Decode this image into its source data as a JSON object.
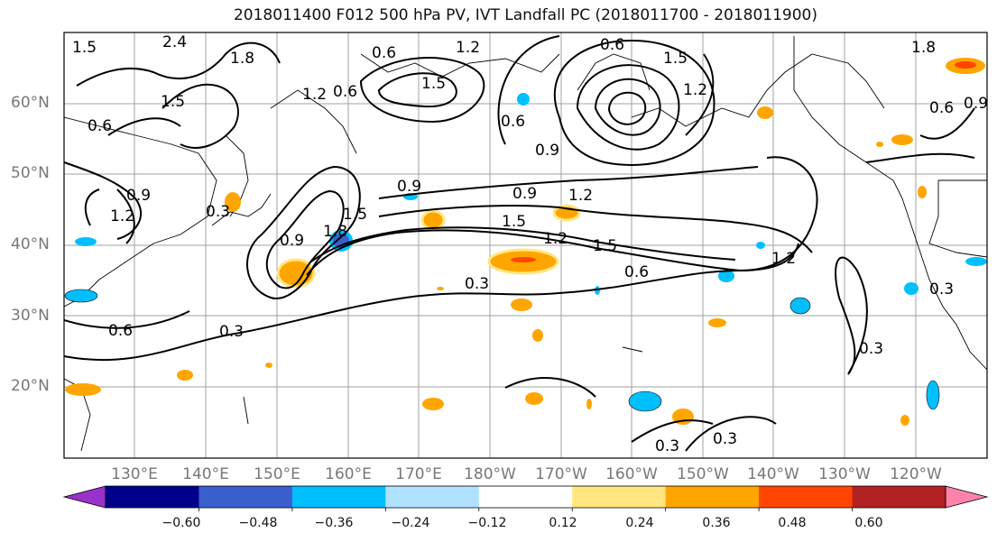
{
  "title": "2018011400 F012 500 hPa PV, IVT Landfall PC (2018011700 - 2018011900)",
  "lat_labels": [
    "60°N",
    "50°N",
    "40°N",
    "30°N",
    "20°N"
  ],
  "lon_labels": [
    "130°E",
    "140°E",
    "150°E",
    "160°E",
    "170°E",
    "180°W",
    "170°W",
    "160°W",
    "150°W",
    "140°W",
    "130°W",
    "120°W"
  ],
  "colorbar": {
    "tick_labels": [
      "−0.60",
      "−0.48",
      "−0.36",
      "−0.24",
      "−0.12",
      "0.12",
      "0.24",
      "0.36",
      "0.48",
      "0.60"
    ],
    "colors": [
      "#9932cc",
      "#00008b",
      "#3a5fcd",
      "#00bfff",
      "#b0e2ff",
      "#ffffff",
      "#ffe680",
      "#ffa500",
      "#ff4500",
      "#b22222",
      "#ff82ab"
    ]
  },
  "contour_labels": [
    "0.3",
    "0.6",
    "0.9",
    "1.2",
    "1.5",
    "1.8",
    "2.4"
  ]
}
